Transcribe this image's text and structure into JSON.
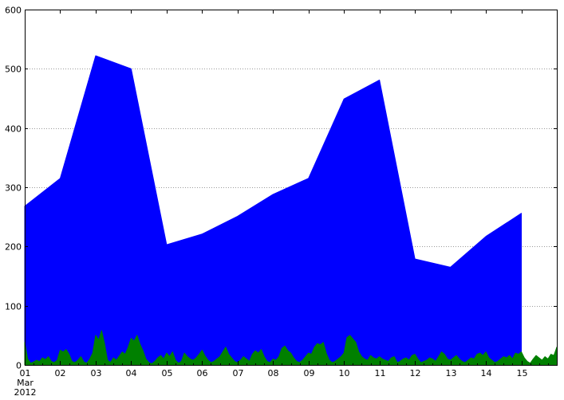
{
  "chart_data": {
    "type": "area",
    "title": "",
    "xlabel": "",
    "ylabel": "",
    "ylim": [
      0,
      600
    ],
    "xlim": [
      "2012-03-01",
      "2012-03-16"
    ],
    "grid": "y-dotted",
    "legend": "none",
    "y_ticks": [
      "0",
      "100",
      "200",
      "300",
      "400",
      "500",
      "600"
    ],
    "x_ticks": [
      {
        "x": "2012-03-01",
        "label": "01",
        "sub": [
          "Mar",
          "2012"
        ]
      },
      {
        "x": "2012-03-02",
        "label": "02"
      },
      {
        "x": "2012-03-03",
        "label": "03"
      },
      {
        "x": "2012-03-04",
        "label": "04"
      },
      {
        "x": "2012-03-05",
        "label": "05"
      },
      {
        "x": "2012-03-06",
        "label": "06"
      },
      {
        "x": "2012-03-07",
        "label": "07"
      },
      {
        "x": "2012-03-08",
        "label": "08"
      },
      {
        "x": "2012-03-09",
        "label": "09"
      },
      {
        "x": "2012-03-10",
        "label": "10"
      },
      {
        "x": "2012-03-11",
        "label": "11"
      },
      {
        "x": "2012-03-12",
        "label": "12"
      },
      {
        "x": "2012-03-13",
        "label": "13"
      },
      {
        "x": "2012-03-14",
        "label": "14"
      },
      {
        "x": "2012-03-15",
        "label": "15"
      }
    ],
    "series": [
      {
        "color": "#0000ff",
        "x": [
          "2012-03-01",
          "2012-03-02",
          "2012-03-03",
          "2012-03-04",
          "2012-03-05",
          "2012-03-06",
          "2012-03-07",
          "2012-03-08",
          "2012-03-09",
          "2012-03-10",
          "2012-03-11",
          "2012-03-12",
          "2012-03-13",
          "2012-03-14",
          "2012-03-15"
        ],
        "values": [
          268,
          315,
          522,
          500,
          203,
          221,
          251,
          288,
          315,
          449,
          481,
          179,
          165,
          217,
          256
        ]
      },
      {
        "color": "#008000",
        "x": [
          "2012-03-01 00:00",
          "2012-03-01 02:00",
          "2012-03-01 04:00",
          "2012-03-01 06:00",
          "2012-03-01 08:00",
          "2012-03-01 10:00",
          "2012-03-01 12:00",
          "2012-03-01 14:00",
          "2012-03-01 16:00",
          "2012-03-01 18:00",
          "2012-03-01 20:00",
          "2012-03-01 22:00",
          "2012-03-02 00:00",
          "2012-03-02 02:00",
          "2012-03-02 04:00",
          "2012-03-02 06:00",
          "2012-03-02 08:00",
          "2012-03-02 10:00",
          "2012-03-02 12:00",
          "2012-03-02 14:00",
          "2012-03-02 16:00",
          "2012-03-02 18:00",
          "2012-03-02 20:00",
          "2012-03-02 22:00",
          "2012-03-03 00:00",
          "2012-03-03 02:00",
          "2012-03-03 04:00",
          "2012-03-03 06:00",
          "2012-03-03 08:00",
          "2012-03-03 10:00",
          "2012-03-03 12:00",
          "2012-03-03 14:00",
          "2012-03-03 16:00",
          "2012-03-03 18:00",
          "2012-03-03 20:00",
          "2012-03-03 22:00",
          "2012-03-04 00:00",
          "2012-03-04 02:00",
          "2012-03-04 04:00",
          "2012-03-04 06:00",
          "2012-03-04 08:00",
          "2012-03-04 10:00",
          "2012-03-04 12:00",
          "2012-03-04 14:00",
          "2012-03-04 16:00",
          "2012-03-04 18:00",
          "2012-03-04 20:00",
          "2012-03-04 22:00",
          "2012-03-05 00:00",
          "2012-03-05 02:00",
          "2012-03-05 04:00",
          "2012-03-05 06:00",
          "2012-03-05 08:00",
          "2012-03-05 10:00",
          "2012-03-05 12:00",
          "2012-03-05 14:00",
          "2012-03-05 16:00",
          "2012-03-05 18:00",
          "2012-03-05 20:00",
          "2012-03-05 22:00",
          "2012-03-06 00:00",
          "2012-03-06 02:00",
          "2012-03-06 04:00",
          "2012-03-06 06:00",
          "2012-03-06 08:00",
          "2012-03-06 10:00",
          "2012-03-06 12:00",
          "2012-03-06 14:00",
          "2012-03-06 16:00",
          "2012-03-06 18:00",
          "2012-03-06 20:00",
          "2012-03-06 22:00",
          "2012-03-07 00:00",
          "2012-03-07 02:00",
          "2012-03-07 04:00",
          "2012-03-07 06:00",
          "2012-03-07 08:00",
          "2012-03-07 10:00",
          "2012-03-07 12:00",
          "2012-03-07 14:00",
          "2012-03-07 16:00",
          "2012-03-07 18:00",
          "2012-03-07 20:00",
          "2012-03-07 22:00",
          "2012-03-08 00:00",
          "2012-03-08 02:00",
          "2012-03-08 04:00",
          "2012-03-08 06:00",
          "2012-03-08 08:00",
          "2012-03-08 10:00",
          "2012-03-08 12:00",
          "2012-03-08 14:00",
          "2012-03-08 16:00",
          "2012-03-08 18:00",
          "2012-03-08 20:00",
          "2012-03-08 22:00",
          "2012-03-09 00:00",
          "2012-03-09 02:00",
          "2012-03-09 04:00",
          "2012-03-09 06:00",
          "2012-03-09 08:00",
          "2012-03-09 10:00",
          "2012-03-09 12:00",
          "2012-03-09 14:00",
          "2012-03-09 16:00",
          "2012-03-09 18:00",
          "2012-03-09 20:00",
          "2012-03-09 22:00",
          "2012-03-10 00:00",
          "2012-03-10 02:00",
          "2012-03-10 04:00",
          "2012-03-10 06:00",
          "2012-03-10 08:00",
          "2012-03-10 10:00",
          "2012-03-10 12:00",
          "2012-03-10 14:00",
          "2012-03-10 16:00",
          "2012-03-10 18:00",
          "2012-03-10 20:00",
          "2012-03-10 22:00",
          "2012-03-11 00:00",
          "2012-03-11 02:00",
          "2012-03-11 04:00",
          "2012-03-11 06:00",
          "2012-03-11 08:00",
          "2012-03-11 10:00",
          "2012-03-11 12:00",
          "2012-03-11 14:00",
          "2012-03-11 16:00",
          "2012-03-11 18:00",
          "2012-03-11 20:00",
          "2012-03-11 22:00",
          "2012-03-12 00:00",
          "2012-03-12 02:00",
          "2012-03-12 04:00",
          "2012-03-12 06:00",
          "2012-03-12 08:00",
          "2012-03-12 10:00",
          "2012-03-12 12:00",
          "2012-03-12 14:00",
          "2012-03-12 16:00",
          "2012-03-12 18:00",
          "2012-03-12 20:00",
          "2012-03-12 22:00",
          "2012-03-13 00:00",
          "2012-03-13 02:00",
          "2012-03-13 04:00",
          "2012-03-13 06:00",
          "2012-03-13 08:00",
          "2012-03-13 10:00",
          "2012-03-13 12:00",
          "2012-03-13 14:00",
          "2012-03-13 16:00",
          "2012-03-13 18:00",
          "2012-03-13 20:00",
          "2012-03-13 22:00",
          "2012-03-14 00:00",
          "2012-03-14 02:00",
          "2012-03-14 04:00",
          "2012-03-14 06:00",
          "2012-03-14 08:00",
          "2012-03-14 10:00",
          "2012-03-14 12:00",
          "2012-03-14 14:00",
          "2012-03-14 16:00",
          "2012-03-14 18:00",
          "2012-03-14 20:00",
          "2012-03-14 22:00",
          "2012-03-15 00:00",
          "2012-03-15 02:00",
          "2012-03-15 04:00",
          "2012-03-15 06:00",
          "2012-03-15 08:00",
          "2012-03-15 10:00",
          "2012-03-15 12:00",
          "2012-03-15 14:00",
          "2012-03-15 16:00",
          "2012-03-15 18:00",
          "2012-03-15 20:00",
          "2012-03-15 22:00",
          "2012-03-16 00:00"
        ],
        "values": [
          38,
          10,
          3,
          5,
          8,
          6,
          12,
          9,
          14,
          6,
          4,
          8,
          25,
          22,
          26,
          18,
          6,
          4,
          8,
          14,
          5,
          3,
          10,
          20,
          50,
          42,
          58,
          36,
          8,
          4,
          12,
          8,
          15,
          22,
          18,
          30,
          45,
          40,
          50,
          35,
          24,
          10,
          4,
          2,
          6,
          12,
          16,
          10,
          20,
          14,
          22,
          8,
          3,
          6,
          20,
          14,
          10,
          8,
          12,
          18,
          25,
          15,
          8,
          4,
          6,
          10,
          14,
          22,
          30,
          18,
          12,
          6,
          4,
          8,
          14,
          10,
          6,
          18,
          24,
          20,
          26,
          14,
          6,
          4,
          10,
          8,
          14,
          28,
          32,
          24,
          20,
          12,
          6,
          4,
          8,
          14,
          20,
          18,
          30,
          36,
          34,
          38,
          20,
          8,
          4,
          6,
          10,
          14,
          20,
          46,
          50,
          44,
          38,
          22,
          14,
          10,
          8,
          16,
          12,
          10,
          14,
          10,
          8,
          6,
          12,
          14,
          4,
          6,
          10,
          12,
          8,
          16,
          18,
          10,
          4,
          6,
          8,
          12,
          10,
          6,
          14,
          22,
          18,
          10,
          8,
          12,
          16,
          10,
          6,
          4,
          8,
          12,
          10,
          18,
          20,
          16,
          22,
          12,
          8,
          4,
          6,
          10,
          14,
          12,
          16,
          10,
          20,
          18,
          22,
          12,
          6,
          3,
          10,
          16,
          12,
          8,
          14,
          10,
          18,
          16,
          30
        ]
      }
    ]
  }
}
